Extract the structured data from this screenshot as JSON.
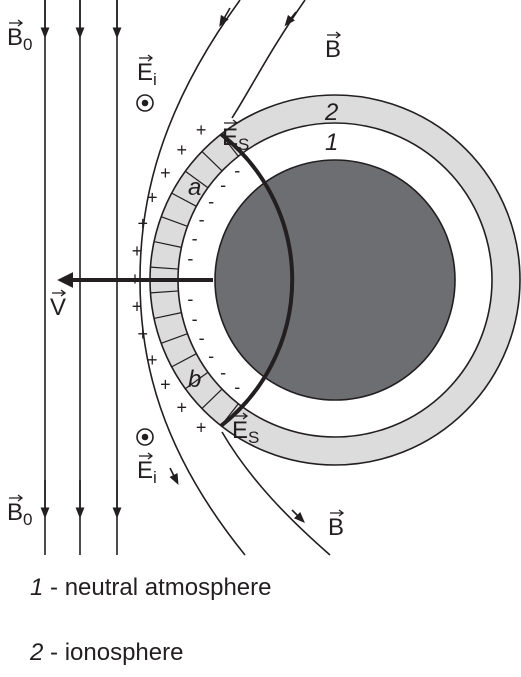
{
  "labels": {
    "b0_top": {
      "symbol": "B",
      "subscript": "0"
    },
    "b0_bottom": {
      "symbol": "B",
      "subscript": "0"
    },
    "ei_top": {
      "symbol": "E",
      "subscript": "i"
    },
    "ei_bottom": {
      "symbol": "E",
      "subscript": "i"
    },
    "es_top": {
      "symbol": "E",
      "subscript": "S"
    },
    "es_bottom": {
      "symbol": "E",
      "subscript": "S"
    },
    "b_top": "B",
    "b_bottom": "B",
    "v": "V",
    "a": "a",
    "b": "b",
    "ring_1": "1",
    "ring_2": "2",
    "plus": "+",
    "minus": "-"
  },
  "legend": [
    {
      "number": "1",
      "text": " - neutral atmosphere"
    },
    {
      "number": "2",
      "text": " - ionosphere"
    }
  ]
}
